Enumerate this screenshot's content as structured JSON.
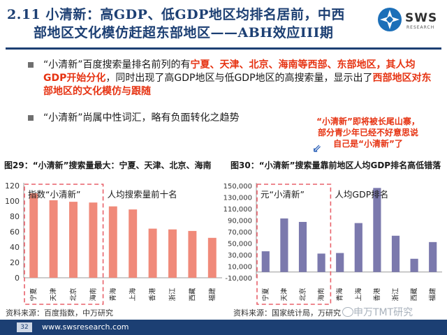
{
  "header": {
    "title_line1": "2.11 小清新：高GDP、低GDP地区均排名居前，中西",
    "title_line2": "部地区文化模仿赶超东部地区——ABH效应III期",
    "logo_text": "SWS",
    "logo_sub": "RESEARCH"
  },
  "bullets": [
    {
      "t1": "“小清新”百度搜索量排名前列的有",
      "r1": "宁夏、天津、北京、海南等西部、东部地区，其人均GDP开始分化",
      "t2": "，同时出现了高GDP地区与低GDP地区的高搜索量，显示出了",
      "r2": "西部地区对东部地区的文化模仿与跟随"
    },
    {
      "text": "“小清新”尚属中性词汇，略有负面转化之趋势"
    }
  ],
  "callout": [
    "“小清新”即将被长尾山寨，",
    "部分青少年已经不好意思说",
    "自己是“小清新”了"
  ],
  "arrow": "⇙",
  "chart_data": [
    {
      "type": "bar",
      "title": "图29：“小清新”搜索量最大：宁夏、天津、北京、海南",
      "legend_box": "指数“小清新”",
      "annotation": "人均搜索量前十名",
      "categories": [
        "宁夏",
        "天津",
        "北京",
        "海南",
        "青海",
        "上海",
        "香港",
        "浙江",
        "西藏",
        "福建"
      ],
      "values": [
        110,
        101,
        99,
        98,
        93,
        89,
        64,
        63,
        61,
        52
      ],
      "highlight_count": 4,
      "yticks": [
        "0",
        "20",
        "40",
        "60",
        "80",
        "100",
        "120"
      ],
      "ylim": [
        0,
        120
      ],
      "color": "#f08a7a",
      "source": "资料来源：百度指数，中万研究"
    },
    {
      "type": "bar",
      "title": "图30：“小清新”搜索量靠前地区人均GDP排名高低错落",
      "legend_box": "元“小清新”",
      "annotation": "人均GDP排名",
      "categories": [
        "宁夏",
        "天津",
        "北京",
        "海南",
        "青海",
        "上海",
        "香港",
        "浙江",
        "西藏",
        "福建"
      ],
      "values": [
        36000,
        93000,
        87000,
        32000,
        33000,
        85000,
        146000,
        63000,
        23000,
        52000
      ],
      "highlight_count": 4,
      "yticks": [
        "-10,000",
        "10,000",
        "30,000",
        "50,000",
        "70,000",
        "90,000",
        "110,000",
        "130,000",
        "150,000"
      ],
      "ylim": [
        -10000,
        150000
      ],
      "color": "#7b79ad",
      "source": "资料来源：国家统计局，万研究"
    }
  ],
  "footer": {
    "page": "32",
    "url": "www.swsresearch.com"
  },
  "watermark": "申万TMT研究"
}
